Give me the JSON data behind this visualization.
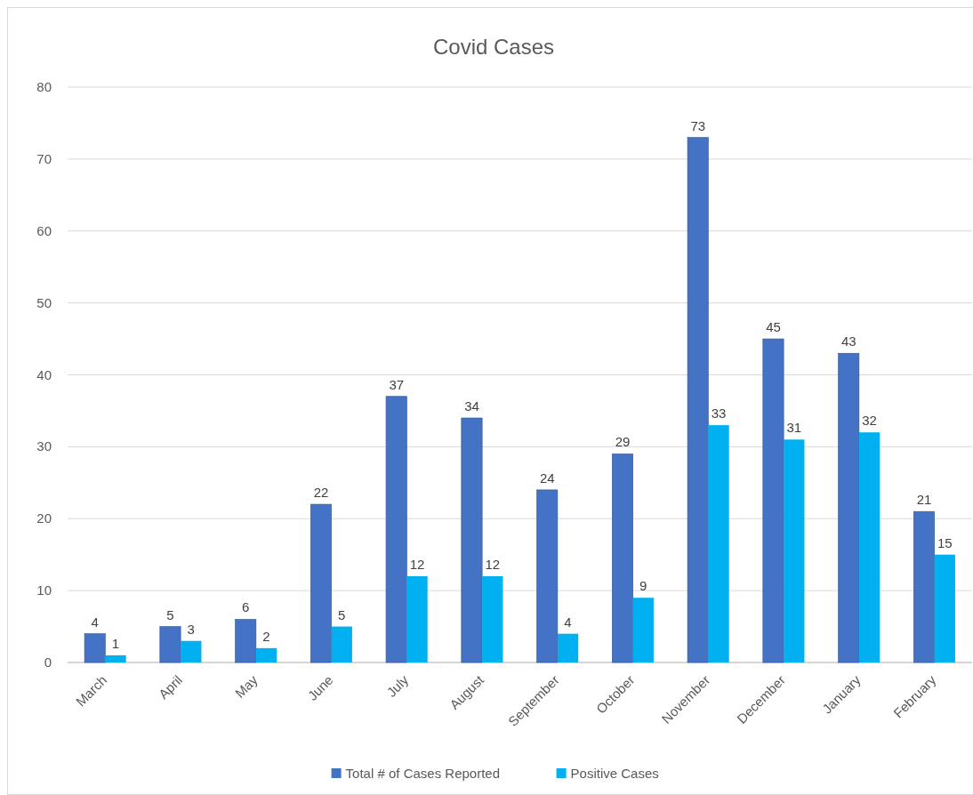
{
  "chart_data": {
    "type": "bar",
    "title": "Covid Cases",
    "categories": [
      "March",
      "April",
      "May",
      "June",
      "July",
      "August",
      "September",
      "October",
      "November",
      "December",
      "January",
      "February"
    ],
    "series": [
      {
        "name": "Total # of Cases Reported",
        "color": "#4472c4",
        "values": [
          4,
          5,
          6,
          22,
          37,
          34,
          24,
          29,
          73,
          45,
          43,
          21
        ]
      },
      {
        "name": "Positive Cases",
        "color": "#00b0f0",
        "values": [
          1,
          3,
          2,
          5,
          12,
          12,
          4,
          9,
          33,
          31,
          32,
          15
        ]
      }
    ],
    "ylim": [
      0,
      80
    ],
    "yticks": [
      0,
      10,
      20,
      30,
      40,
      50,
      60,
      70,
      80
    ],
    "grid": "y",
    "legend": "bottom",
    "data_labels": true
  }
}
